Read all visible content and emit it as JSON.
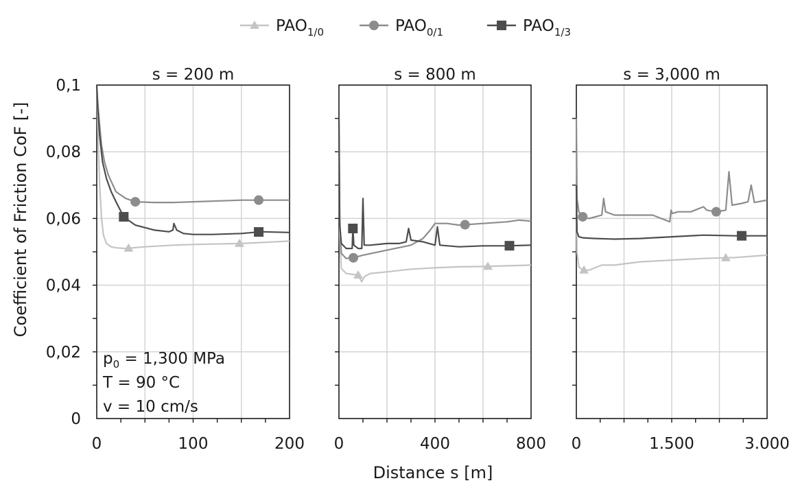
{
  "figure": {
    "xlabel": "Distance s [m]",
    "ylabel": "Coefficient of Friction CoF [-]",
    "legend": [
      {
        "base": "PAO",
        "sub": "1/0",
        "color": "#c4c4c4",
        "marker": "triangle"
      },
      {
        "base": "PAO",
        "sub": "0/1",
        "color": "#8c8c8c",
        "marker": "circle"
      },
      {
        "base": "PAO",
        "sub": "1/3",
        "color": "#4d4d4d",
        "marker": "square"
      }
    ],
    "annotation": [
      {
        "pre": "p",
        "sub": "0",
        "post": " = 1,300 MPa"
      },
      {
        "pre": "T = 90 °C",
        "sub": "",
        "post": ""
      },
      {
        "pre": "v = 10 cm/s",
        "sub": "",
        "post": ""
      }
    ]
  },
  "chart_data": [
    {
      "type": "line",
      "title": "s = 200 m",
      "xlim": [
        0,
        200
      ],
      "ylim": [
        0,
        0.1
      ],
      "xticks": [
        0,
        100,
        200
      ],
      "xtick_labels": [
        "0",
        "100",
        "200"
      ],
      "yticks": [
        0,
        0.02,
        0.04,
        0.06,
        0.08,
        0.1
      ],
      "ytick_labels": [
        "0",
        "0,02",
        "0,04",
        "0,06",
        "0,08",
        "0,1"
      ],
      "grid": true,
      "series": [
        {
          "name": "PAO 1/0",
          "x": [
            0,
            1,
            3,
            5,
            7,
            10,
            15,
            20,
            30,
            50,
            80,
            100,
            150,
            200
          ],
          "y": [
            0.1,
            0.088,
            0.07,
            0.06,
            0.055,
            0.0525,
            0.0515,
            0.0512,
            0.051,
            0.0515,
            0.052,
            0.0522,
            0.0525,
            0.0532
          ],
          "markers_x": [
            33,
            148
          ]
        },
        {
          "name": "PAO 0/1",
          "x": [
            0,
            1,
            3,
            5,
            8,
            12,
            16,
            20,
            30,
            40,
            60,
            80,
            100,
            150,
            200
          ],
          "y": [
            0.1,
            0.095,
            0.088,
            0.082,
            0.077,
            0.073,
            0.0705,
            0.068,
            0.066,
            0.065,
            0.0648,
            0.0648,
            0.065,
            0.0655,
            0.0655
          ],
          "markers_x": [
            40,
            168
          ]
        },
        {
          "name": "PAO 1/3",
          "x": [
            0,
            1,
            3,
            6,
            10,
            15,
            20,
            28,
            40,
            60,
            75,
            79,
            80,
            83,
            90,
            100,
            120,
            150,
            170,
            200
          ],
          "y": [
            0.1,
            0.093,
            0.085,
            0.077,
            0.072,
            0.068,
            0.065,
            0.0605,
            0.058,
            0.0565,
            0.056,
            0.0565,
            0.0585,
            0.0565,
            0.0555,
            0.0552,
            0.0552,
            0.0555,
            0.056,
            0.0558
          ],
          "markers_x": [
            28,
            168
          ]
        }
      ]
    },
    {
      "type": "line",
      "title": "s = 800 m",
      "xlim": [
        0,
        800
      ],
      "ylim": [
        0,
        0.1
      ],
      "xticks": [
        0,
        400,
        800
      ],
      "xtick_labels": [
        "0",
        "400",
        "800"
      ],
      "yticks": [
        0,
        0.02,
        0.04,
        0.06,
        0.08,
        0.1
      ],
      "grid": true,
      "series": [
        {
          "name": "PAO 1/0",
          "x": [
            0,
            3,
            10,
            30,
            60,
            80,
            95,
            105,
            130,
            200,
            300,
            400,
            500,
            600,
            700,
            800
          ],
          "y": [
            0.085,
            0.055,
            0.045,
            0.0435,
            0.0432,
            0.043,
            0.041,
            0.0425,
            0.0435,
            0.044,
            0.0448,
            0.0452,
            0.0455,
            0.0456,
            0.0458,
            0.046
          ],
          "markers_x": [
            80,
            620
          ]
        },
        {
          "name": "PAO 0/1",
          "x": [
            0,
            3,
            10,
            30,
            60,
            100,
            200,
            300,
            350,
            380,
            400,
            450,
            500,
            600,
            700,
            750,
            800
          ],
          "y": [
            0.09,
            0.06,
            0.0495,
            0.048,
            0.0482,
            0.049,
            0.0505,
            0.052,
            0.054,
            0.0565,
            0.0585,
            0.0585,
            0.058,
            0.0585,
            0.059,
            0.0595,
            0.0592
          ],
          "markers_x": [
            60,
            525
          ]
        },
        {
          "name": "PAO 1/3",
          "x": [
            0,
            3,
            10,
            30,
            55,
            58,
            62,
            80,
            95,
            100,
            105,
            130,
            200,
            250,
            280,
            290,
            300,
            350,
            400,
            410,
            420,
            500,
            600,
            700,
            800
          ],
          "y": [
            0.09,
            0.058,
            0.0525,
            0.051,
            0.051,
            0.057,
            0.052,
            0.051,
            0.051,
            0.066,
            0.052,
            0.052,
            0.0525,
            0.0525,
            0.053,
            0.057,
            0.0535,
            0.053,
            0.052,
            0.0575,
            0.052,
            0.0515,
            0.0518,
            0.0518,
            0.052
          ],
          "markers_x": [
            58,
            710
          ]
        }
      ]
    },
    {
      "type": "line",
      "title": "s = 3,000 m",
      "xlim": [
        0,
        3000
      ],
      "ylim": [
        0,
        0.1
      ],
      "xticks": [
        0,
        1500,
        3000
      ],
      "xtick_labels": [
        "0",
        "1.500",
        "3.000"
      ],
      "yticks": [
        0,
        0.02,
        0.04,
        0.06,
        0.08,
        0.1
      ],
      "grid": true,
      "series": [
        {
          "name": "PAO 1/0",
          "x": [
            0,
            10,
            40,
            100,
            200,
            400,
            600,
            1000,
            1500,
            2000,
            2500,
            3000
          ],
          "y": [
            0.08,
            0.05,
            0.0455,
            0.0445,
            0.0445,
            0.046,
            0.046,
            0.047,
            0.0475,
            0.048,
            0.0483,
            0.049
          ],
          "markers_x": [
            120,
            2350
          ]
        },
        {
          "name": "PAO 0/1",
          "x": [
            0,
            10,
            40,
            100,
            200,
            300,
            400,
            430,
            460,
            600,
            800,
            1000,
            1200,
            1470,
            1490,
            1510,
            1600,
            1800,
            2000,
            2050,
            2200,
            2350,
            2400,
            2450,
            2600,
            2700,
            2750,
            2800,
            3000
          ],
          "y": [
            0.09,
            0.066,
            0.062,
            0.0605,
            0.06,
            0.0605,
            0.061,
            0.066,
            0.062,
            0.061,
            0.061,
            0.061,
            0.061,
            0.059,
            0.0625,
            0.0615,
            0.062,
            0.062,
            0.0635,
            0.0625,
            0.062,
            0.0625,
            0.074,
            0.064,
            0.0645,
            0.065,
            0.07,
            0.0648,
            0.0655
          ],
          "markers_x": [
            100,
            2200
          ]
        },
        {
          "name": "PAO 1/3",
          "x": [
            0,
            10,
            40,
            100,
            300,
            600,
            1000,
            1500,
            2000,
            2500,
            3000
          ],
          "y": [
            0.07,
            0.056,
            0.0545,
            0.0542,
            0.054,
            0.0538,
            0.054,
            0.0545,
            0.055,
            0.0548,
            0.0548
          ],
          "markers_x": [
            2600
          ]
        }
      ]
    }
  ]
}
